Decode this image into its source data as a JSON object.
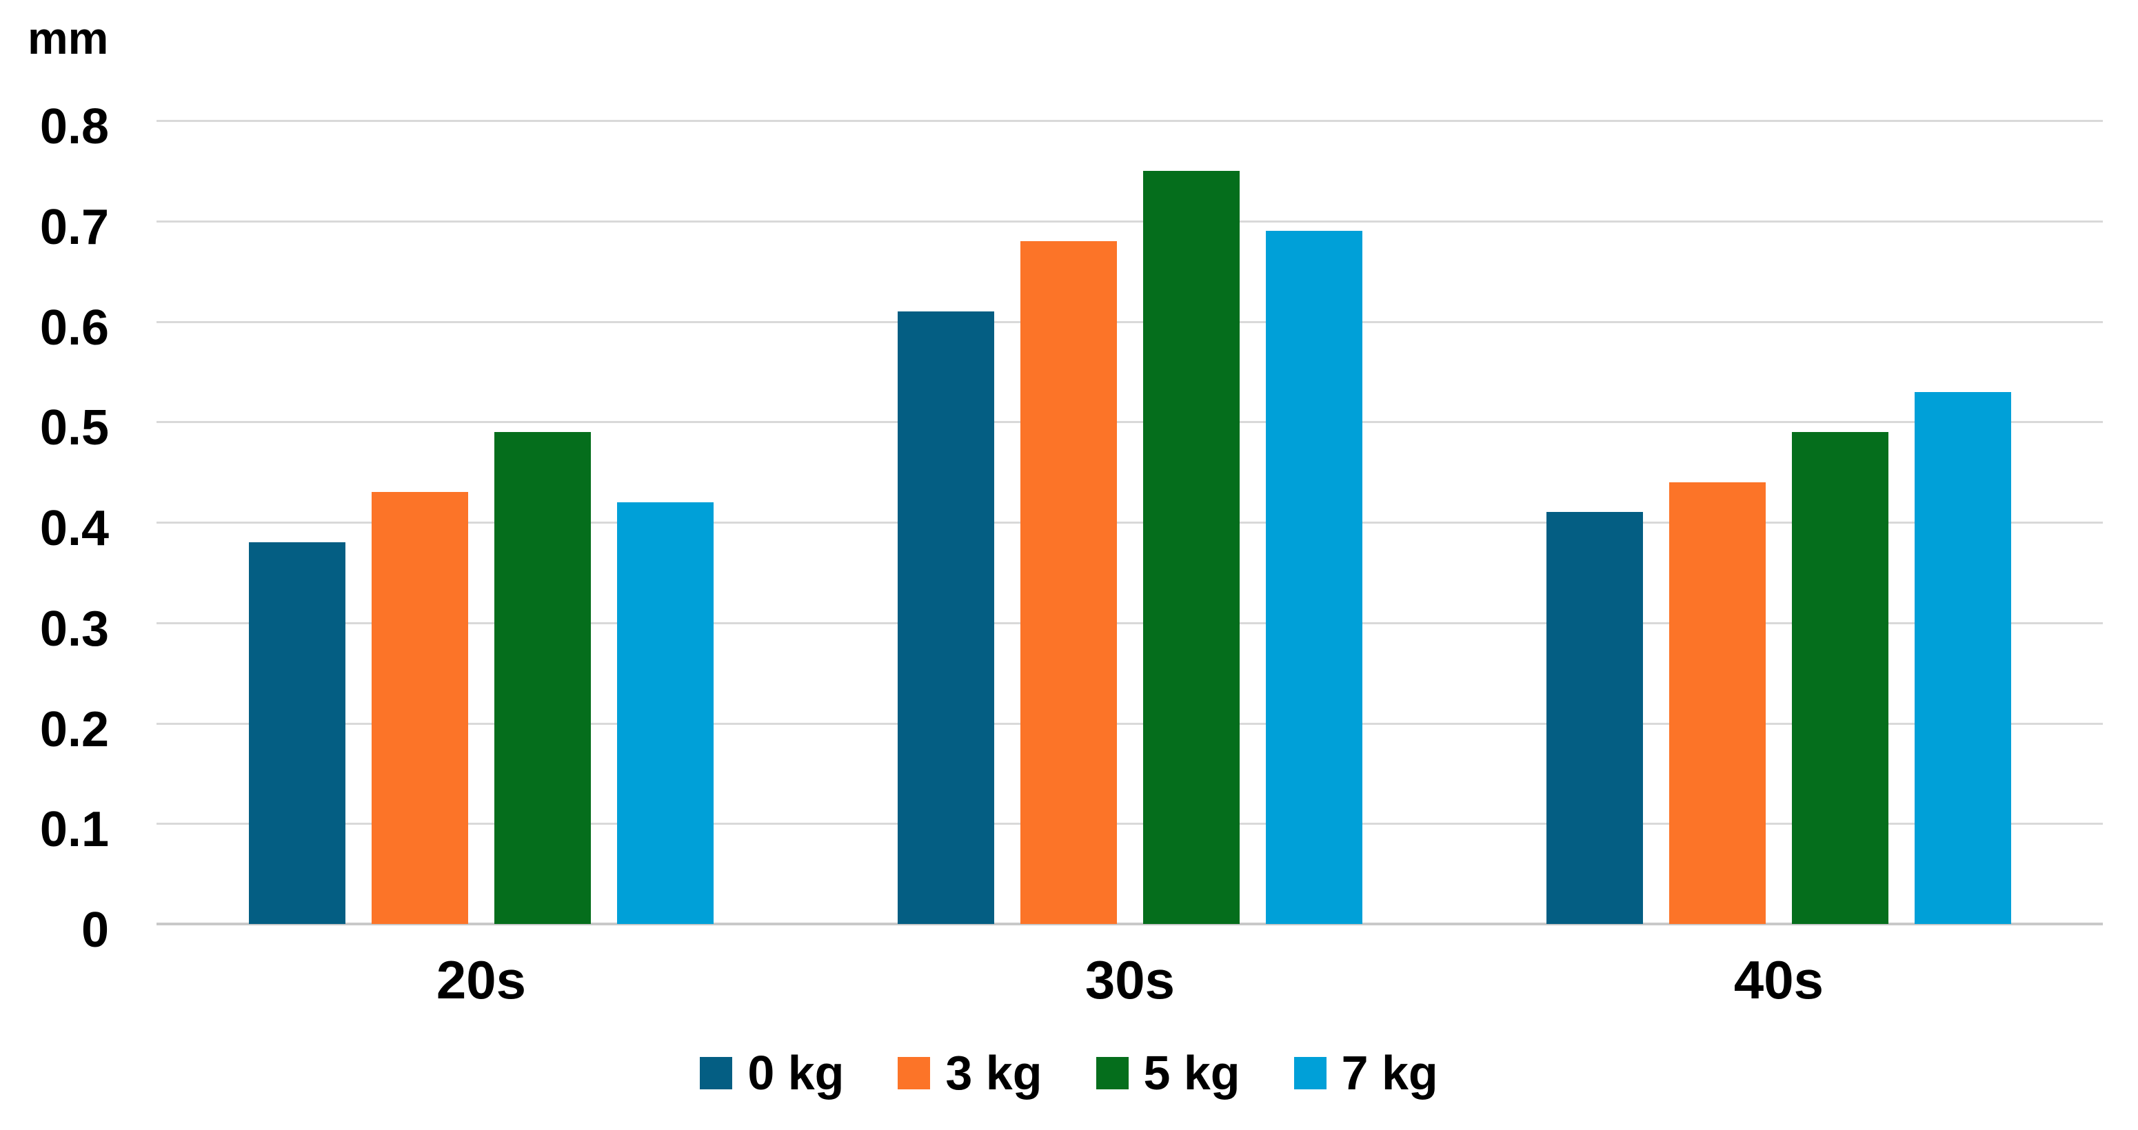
{
  "chart_data": {
    "type": "bar",
    "title": "",
    "unit_label": "mm",
    "categories": [
      "20s",
      "30s",
      "40s"
    ],
    "series": [
      {
        "name": "0 kg",
        "color": "#045E83",
        "values": [
          0.38,
          0.61,
          0.41
        ]
      },
      {
        "name": "3 kg",
        "color": "#FC7428",
        "values": [
          0.43,
          0.68,
          0.44
        ]
      },
      {
        "name": "5 kg",
        "color": "#056E1C",
        "values": [
          0.49,
          0.75,
          0.49
        ]
      },
      {
        "name": "7 kg",
        "color": "#00A0D8",
        "values": [
          0.42,
          0.69,
          0.53
        ]
      }
    ],
    "y_axis": {
      "min": 0,
      "max": 0.8,
      "step": 0.1,
      "tick_labels": [
        "0",
        "0.1",
        "0.2",
        "0.3",
        "0.4",
        "0.5",
        "0.6",
        "0.7",
        "0.8"
      ]
    },
    "grid": true,
    "gridline_color": "#D9D9D9",
    "axis_line_color": "#C9C9C9",
    "text_color": "#000000",
    "legend_position": "bottom",
    "background_color": "#FFFFFF"
  }
}
